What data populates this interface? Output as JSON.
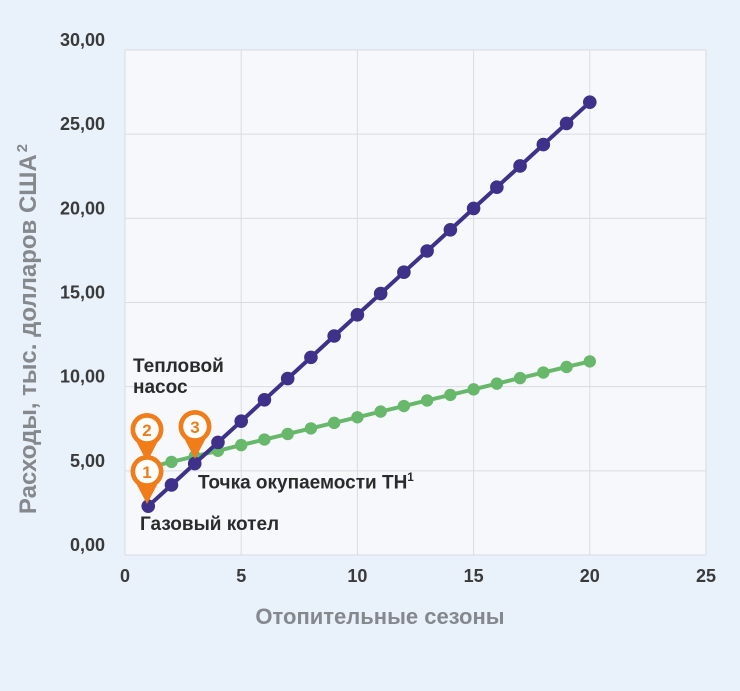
{
  "colors": {
    "page_background": "#e9f1fb",
    "plot_background": "#f6f8fc",
    "gridline": "#d9dce1",
    "gas_boiler_line": "#3f3189",
    "heat_pump_line": "#68b86c",
    "pin_orange": "#f07c1a",
    "tick_text": "#3a3a3a",
    "axis_title_text": "#85888c",
    "annotation_text": "#2b2b2b"
  },
  "chart_data": {
    "type": "line",
    "title": "",
    "xlabel": "Отопительные сезоны",
    "ylabel": "Расходы, тыс. долларов США²",
    "xlim": [
      0,
      25
    ],
    "ylim": [
      0,
      30
    ],
    "grid": true,
    "legend_position": "none (series labeled by inline annotations)",
    "x_ticks": [
      0,
      5,
      10,
      15,
      20,
      25
    ],
    "x_tick_labels": [
      "0",
      "5",
      "10",
      "15",
      "20",
      "25"
    ],
    "y_ticks": [
      0,
      5,
      10,
      15,
      20,
      25,
      30
    ],
    "y_tick_labels": [
      "0,00",
      "5,00",
      "10,00",
      "15,00",
      "20,00",
      "25,00",
      "30,00"
    ],
    "x": [
      1,
      2,
      3,
      4,
      5,
      6,
      7,
      8,
      9,
      10,
      11,
      12,
      13,
      14,
      15,
      16,
      17,
      18,
      19,
      20
    ],
    "series": [
      {
        "name": "Газовый котел",
        "color": "#3f3189",
        "values": [
          2.9,
          4.16,
          5.43,
          6.69,
          7.95,
          9.22,
          10.48,
          11.74,
          13.01,
          14.27,
          15.53,
          16.8,
          18.06,
          19.32,
          20.59,
          21.85,
          23.11,
          24.38,
          25.64,
          26.9
        ]
      },
      {
        "name": "Тепловой насос",
        "color": "#68b86c",
        "values": [
          5.2,
          5.53,
          5.86,
          6.19,
          6.53,
          6.86,
          7.19,
          7.52,
          7.85,
          8.18,
          8.52,
          8.85,
          9.18,
          9.51,
          9.84,
          10.18,
          10.51,
          10.84,
          11.17,
          11.5
        ]
      }
    ]
  },
  "axis_titles": {
    "x": "Отопительные сезоны",
    "y_base": "Расходы, тыс. долларов США",
    "y_superscript": "2"
  },
  "annotations": {
    "heat_pump": "Тепловой насос",
    "gas_boiler": "Газовый котел",
    "payback_base": "Точка окупаемости ТН",
    "payback_superscript": "1"
  },
  "pins": [
    {
      "number": "1",
      "points_to": "Газовый котел, сезон 1"
    },
    {
      "number": "2",
      "points_to": "Тепловой насос, сезон 1"
    },
    {
      "number": "3",
      "points_to": "Точка окупаемости ТН"
    }
  ]
}
